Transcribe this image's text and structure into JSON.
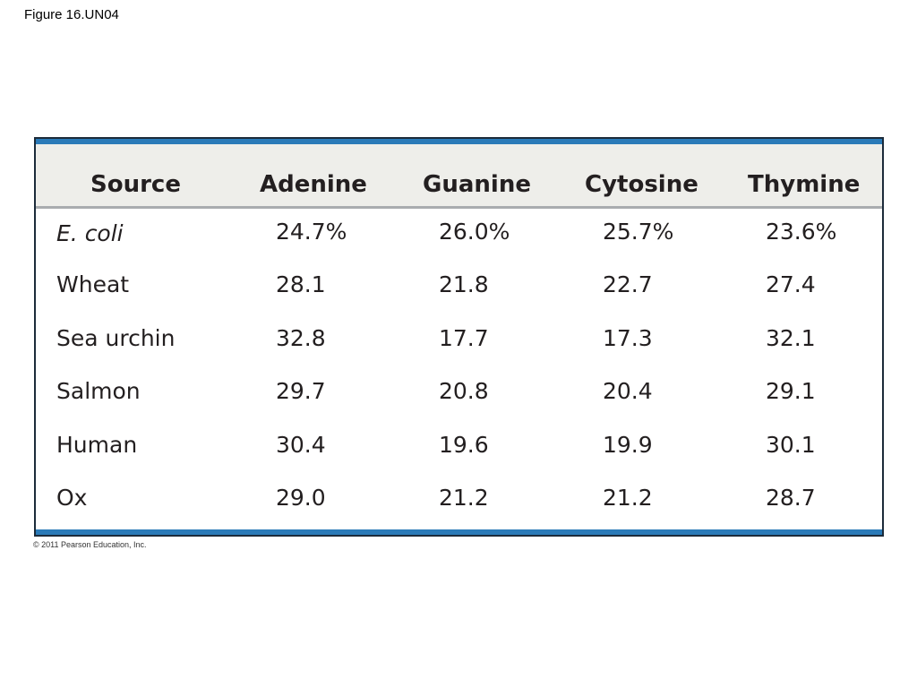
{
  "figure_label": "Figure 16.UN04",
  "copyright": "© 2011 Pearson Education, Inc.",
  "table": {
    "headers": [
      "Source",
      "Adenine",
      "Guanine",
      "Cytosine",
      "Thymine"
    ],
    "rows": [
      {
        "source": "E. coli",
        "italic": true,
        "adenine": "24.7%",
        "guanine": "26.0%",
        "cytosine": "25.7%",
        "thymine": "23.6%"
      },
      {
        "source": "Wheat",
        "adenine": "28.1",
        "guanine": "21.8",
        "cytosine": "22.7",
        "thymine": "27.4"
      },
      {
        "source": "Sea urchin",
        "adenine": "32.8",
        "guanine": "17.7",
        "cytosine": "17.3",
        "thymine": "32.1"
      },
      {
        "source": "Salmon",
        "adenine": "29.7",
        "guanine": "20.8",
        "cytosine": "20.4",
        "thymine": "29.1"
      },
      {
        "source": "Human",
        "adenine": "30.4",
        "guanine": "19.6",
        "cytosine": "19.9",
        "thymine": "30.1"
      },
      {
        "source": "Ox",
        "adenine": "29.0",
        "guanine": "21.2",
        "cytosine": "21.2",
        "thymine": "28.7"
      }
    ]
  },
  "colors": {
    "accent_bar": "#2a7ab8",
    "header_background": "#eeeeea",
    "text": "#231f20"
  }
}
